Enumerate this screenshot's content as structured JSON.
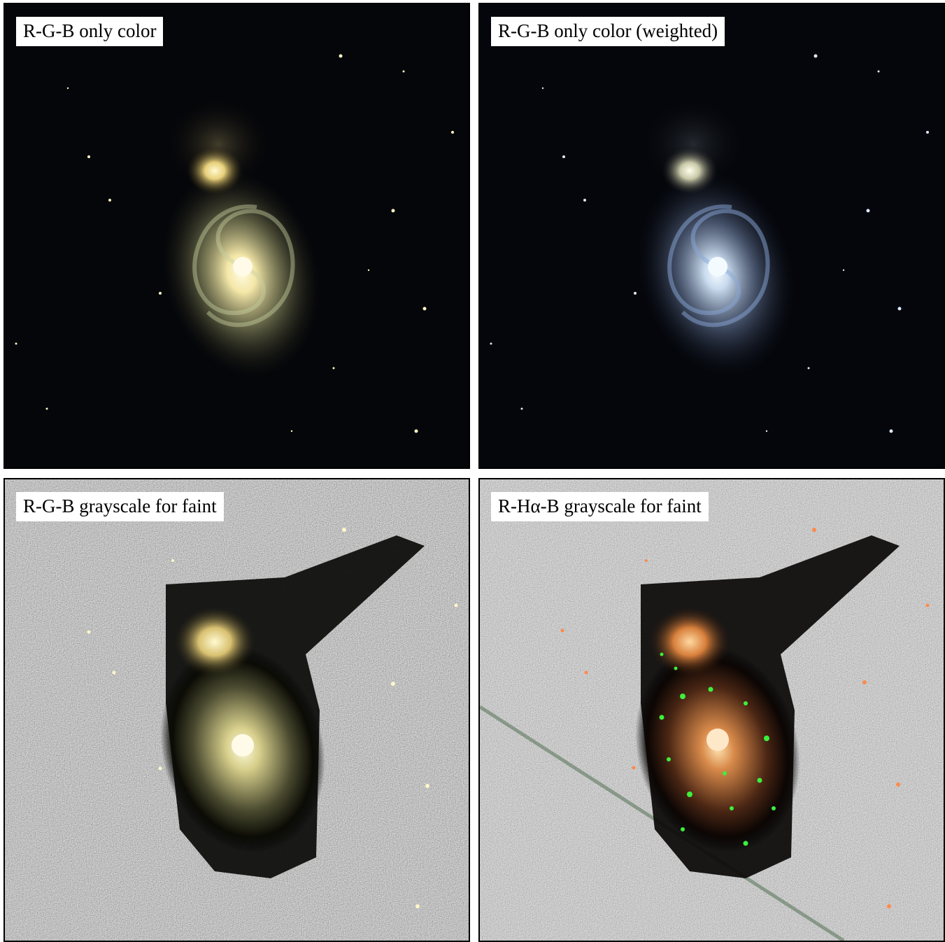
{
  "panels": [
    {
      "label": "R-G-B only color",
      "background": "dark",
      "tint": "#f1e2a0"
    },
    {
      "label": "R-G-B only color (weighted)",
      "background": "dark",
      "tint": "#c8d8f0"
    },
    {
      "label": "R-G-B grayscale for faint",
      "background": "light",
      "tint": "#f1e2a0"
    },
    {
      "label": "R-Hα-B grayscale for faint",
      "background": "light",
      "tint": "#f2a060"
    }
  ]
}
